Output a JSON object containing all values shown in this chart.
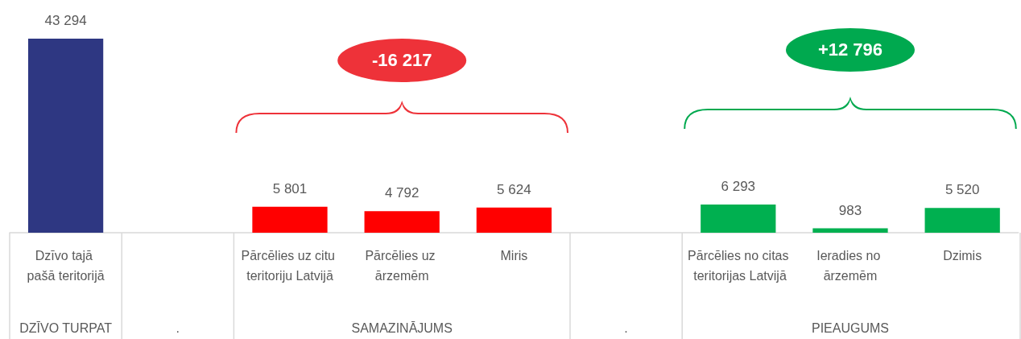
{
  "chart_data": {
    "type": "bar",
    "categories": [
      "Dzīvo tajā pašā teritorijā",
      null,
      "Pārcēlies uz citu teritoriju Latvijā",
      "Pārcēlies uz ārzemēm",
      "Miris",
      null,
      "Pārcēlies no citas teritorijas Latvijā",
      "Ieradies no ārzemēm",
      "Dzimis"
    ],
    "values": [
      43294,
      null,
      5801,
      4792,
      5624,
      null,
      6293,
      983,
      5520
    ],
    "value_labels": [
      "43 294",
      null,
      "5 801",
      "4 792",
      "5 624",
      null,
      "6 293",
      "983",
      "5 520"
    ],
    "colors": [
      "#2e3782",
      "#2e3782",
      "#ff0000",
      "#ff0000",
      "#ff0000",
      "#00b050",
      "#00b050",
      "#00b050",
      "#00b050"
    ],
    "annotations": [
      "-16 217",
      "+12 796",
      "DZĪVO TURPAT",
      ".",
      "SAMAZINĀJUMS",
      ".",
      "PIEAUGUMS"
    ]
  }
}
